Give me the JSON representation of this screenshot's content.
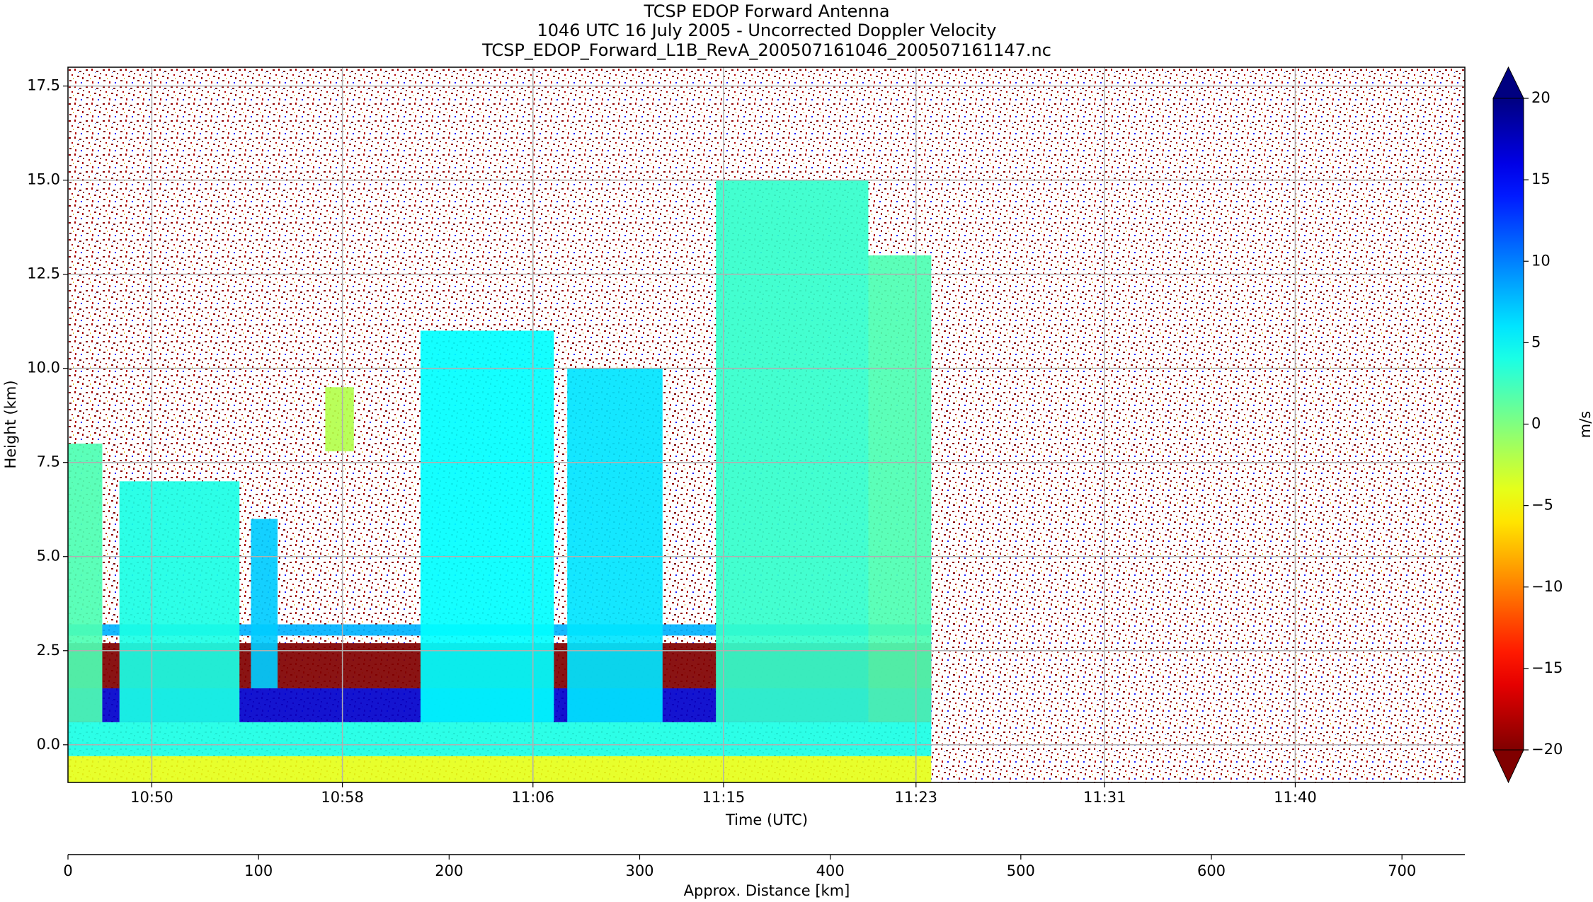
{
  "chart_data": {
    "type": "heatmap",
    "title": [
      "TCSP EDOP Forward Antenna",
      "1046 UTC 16 July 2005 - Uncorrected Doppler Velocity",
      "TCSP_EDOP_Forward_L1B_RevA_200507161046_200507161147.nc"
    ],
    "ylabel": "Height (km)",
    "xlabel": "Time (UTC)",
    "x2label": "Approx. Distance [km]",
    "ylim": [
      -1,
      18
    ],
    "yticks": [
      {
        "value": 0,
        "label": "0.0"
      },
      2.5,
      {
        "value": 5,
        "label": "5.0"
      },
      7.5,
      {
        "value": 10,
        "label": "10.0"
      },
      12.5,
      {
        "value": 15,
        "label": "15.0"
      },
      17.5
    ],
    "xlim": [
      0,
      733
    ],
    "xticks": [
      {
        "value": 44,
        "label": "10:50"
      },
      {
        "value": 144,
        "label": "10:58"
      },
      {
        "value": 244,
        "label": "11:06"
      },
      {
        "value": 344,
        "label": "11:15"
      },
      {
        "value": 445,
        "label": "11:23"
      },
      {
        "value": 544,
        "label": "11:31"
      },
      {
        "value": 644,
        "label": "11:40"
      }
    ],
    "x2ticks": [
      0,
      100,
      200,
      300,
      400,
      500,
      600,
      700
    ],
    "grid": true,
    "colorbar": {
      "label": "m/s",
      "lim": [
        -20,
        20
      ],
      "ticks": [
        {
          "value": -20,
          "label": "−20"
        },
        {
          "value": -15,
          "label": "−15"
        },
        {
          "value": -10,
          "label": "−10"
        },
        {
          "value": -5,
          "label": "−5"
        },
        0,
        5,
        10,
        15,
        20
      ]
    },
    "echoes": [
      {
        "x": [
          0,
          453
        ],
        "height": [
          -1,
          -0.3
        ],
        "velocity": -4
      },
      {
        "x": [
          0,
          453
        ],
        "height": [
          -0.3,
          0.6
        ],
        "velocity": 4
      },
      {
        "x": [
          0,
          453
        ],
        "height": [
          0.6,
          1.5
        ],
        "velocity": 17
      },
      {
        "x": [
          0,
          453
        ],
        "height": [
          1.5,
          2.7
        ],
        "velocity": -20
      },
      {
        "x": [
          0,
          453
        ],
        "height": [
          2.9,
          3.2
        ],
        "velocity": 8
      },
      {
        "x": [
          0,
          18
        ],
        "height": [
          0.6,
          8
        ],
        "velocity": 2
      },
      {
        "x": [
          27,
          90
        ],
        "height": [
          0.6,
          7
        ],
        "velocity": 4
      },
      {
        "x": [
          96,
          110
        ],
        "height": [
          1.5,
          6
        ],
        "velocity": 7
      },
      {
        "x": [
          135,
          150
        ],
        "height": [
          7.8,
          9.5
        ],
        "velocity": -2
      },
      {
        "x": [
          185,
          255
        ],
        "height": [
          0.6,
          11
        ],
        "velocity": 5
      },
      {
        "x": [
          262,
          312
        ],
        "height": [
          0.6,
          10
        ],
        "velocity": 6
      },
      {
        "x": [
          340,
          420
        ],
        "height": [
          0.6,
          15
        ],
        "velocity": 3
      },
      {
        "x": [
          420,
          453
        ],
        "height": [
          0.6,
          13
        ],
        "velocity": 2
      }
    ]
  }
}
